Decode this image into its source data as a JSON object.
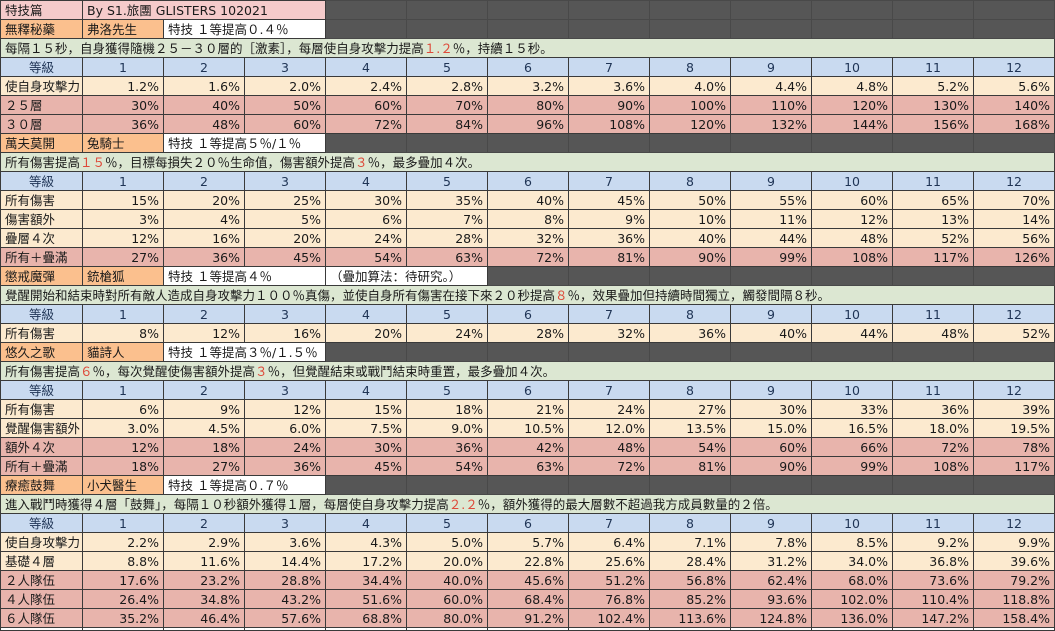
{
  "sheet": {
    "title": "特技篇",
    "byline": "By  S1.旅團 GLISTERS  102021"
  },
  "levels_header": {
    "label": "等級",
    "levels": [
      "1",
      "2",
      "3",
      "4",
      "5",
      "6",
      "7",
      "8",
      "9",
      "10",
      "11",
      "12"
    ]
  },
  "skills": [
    {
      "name": "無釋秘藥",
      "character": "弗洛先生",
      "note": "特技 １等提高０.４％",
      "note2": null,
      "description": [
        {
          "t": "每隔１５秒，自身獲得隨機２５－３０層的［激素］，每層使自身攻擊力提高"
        },
        {
          "t": "１.２",
          "red": true
        },
        {
          "t": "％，持續１５秒。"
        }
      ],
      "rows": [
        {
          "label": "使自身攻擊力",
          "tone": "cream",
          "values": [
            "1.2%",
            "1.6%",
            "2.0%",
            "2.4%",
            "2.8%",
            "3.2%",
            "3.6%",
            "4.0%",
            "4.4%",
            "4.8%",
            "5.2%",
            "5.6%"
          ]
        },
        {
          "label": "２５層",
          "tone": "pinkrow",
          "values": [
            "30%",
            "40%",
            "50%",
            "60%",
            "70%",
            "80%",
            "90%",
            "100%",
            "110%",
            "120%",
            "130%",
            "140%"
          ]
        },
        {
          "label": "３０層",
          "tone": "pinkrow",
          "values": [
            "36%",
            "48%",
            "60%",
            "72%",
            "84%",
            "96%",
            "108%",
            "120%",
            "132%",
            "144%",
            "156%",
            "168%"
          ]
        }
      ]
    },
    {
      "name": "萬夫莫開",
      "character": "兔騎士",
      "note": "特技 １等提高５％/１％",
      "note2": null,
      "description": [
        {
          "t": "所有傷害提高"
        },
        {
          "t": "１５",
          "red": true
        },
        {
          "t": "％，目標每損失２０％生命值，傷害額外提高"
        },
        {
          "t": "３",
          "red": true
        },
        {
          "t": "％，最多疊加４次。"
        }
      ],
      "rows": [
        {
          "label": "所有傷害",
          "tone": "cream",
          "values": [
            "15%",
            "20%",
            "25%",
            "30%",
            "35%",
            "40%",
            "45%",
            "50%",
            "55%",
            "60%",
            "65%",
            "70%"
          ]
        },
        {
          "label": "傷害額外",
          "tone": "cream",
          "values": [
            "3%",
            "4%",
            "5%",
            "6%",
            "7%",
            "8%",
            "9%",
            "10%",
            "11%",
            "12%",
            "13%",
            "14%"
          ]
        },
        {
          "label": "疊層４次",
          "tone": "cream",
          "values": [
            "12%",
            "16%",
            "20%",
            "24%",
            "28%",
            "32%",
            "36%",
            "40%",
            "44%",
            "48%",
            "52%",
            "56%"
          ]
        },
        {
          "label": "所有＋疊滿",
          "tone": "pinkrow",
          "values": [
            "27%",
            "36%",
            "45%",
            "54%",
            "63%",
            "72%",
            "81%",
            "90%",
            "99%",
            "108%",
            "117%",
            "126%"
          ]
        }
      ]
    },
    {
      "name": "懲戒魔彈",
      "character": "銃槍狐",
      "note": "特技 １等提高４％",
      "note2": "（疊加算法：待研究。）",
      "description": [
        {
          "t": "覺醒開始和結束時對所有敵人造成自身攻擊力１００％真傷，並使自身所有傷害在接下來２０秒提高"
        },
        {
          "t": "８",
          "red": true
        },
        {
          "t": "％，效果疊加但持續時間獨立，觸發間隔８秒。"
        }
      ],
      "rows": [
        {
          "label": "所有傷害",
          "tone": "cream",
          "values": [
            "8%",
            "12%",
            "16%",
            "20%",
            "24%",
            "28%",
            "32%",
            "36%",
            "40%",
            "44%",
            "48%",
            "52%"
          ]
        }
      ]
    },
    {
      "name": "悠久之歌",
      "character": "貓詩人",
      "note": "特技 １等提高３％/１.５％",
      "note2": null,
      "description": [
        {
          "t": "所有傷害提高"
        },
        {
          "t": "６",
          "red": true
        },
        {
          "t": "％，每次覺醒使傷害額外提高"
        },
        {
          "t": "３",
          "red": true
        },
        {
          "t": "％，但覺醒結束或戰鬥結束時重置，最多疊加４次。"
        }
      ],
      "rows": [
        {
          "label": "所有傷害",
          "tone": "cream",
          "values": [
            "6%",
            "9%",
            "12%",
            "15%",
            "18%",
            "21%",
            "24%",
            "27%",
            "30%",
            "33%",
            "36%",
            "39%"
          ]
        },
        {
          "label": "覺醒傷害額外",
          "tone": "cream",
          "values": [
            "3.0%",
            "4.5%",
            "6.0%",
            "7.5%",
            "9.0%",
            "10.5%",
            "12.0%",
            "13.5%",
            "15.0%",
            "16.5%",
            "18.0%",
            "19.5%"
          ]
        },
        {
          "label": "額外４次",
          "tone": "pinkrow",
          "values": [
            "12%",
            "18%",
            "24%",
            "30%",
            "36%",
            "42%",
            "48%",
            "54%",
            "60%",
            "66%",
            "72%",
            "78%"
          ]
        },
        {
          "label": "所有＋疊滿",
          "tone": "pinkrow",
          "values": [
            "18%",
            "27%",
            "36%",
            "45%",
            "54%",
            "63%",
            "72%",
            "81%",
            "90%",
            "99%",
            "108%",
            "117%"
          ]
        }
      ]
    },
    {
      "name": "療癒鼓舞",
      "character": "小犬醫生",
      "note": "特技 １等提高０.７％",
      "note2": null,
      "description": [
        {
          "t": "進入戰鬥時獲得４層「鼓舞」，每隔１０秒額外獲得１層，每層使自身攻擊力提高"
        },
        {
          "t": "２.２",
          "red": true
        },
        {
          "t": "％，額外獲得的最大層數不超過我方成員數量的２倍。"
        }
      ],
      "rows": [
        {
          "label": "使自身攻擊力",
          "tone": "cream",
          "values": [
            "2.2%",
            "2.9%",
            "3.6%",
            "4.3%",
            "5.0%",
            "5.7%",
            "6.4%",
            "7.1%",
            "7.8%",
            "8.5%",
            "9.2%",
            "9.9%"
          ]
        },
        {
          "label": "基礎４層",
          "tone": "cream",
          "values": [
            "8.8%",
            "11.6%",
            "14.4%",
            "17.2%",
            "20.0%",
            "22.8%",
            "25.6%",
            "28.4%",
            "31.2%",
            "34.0%",
            "36.8%",
            "39.6%"
          ]
        },
        {
          "label": "２人隊伍",
          "tone": "pinkrow",
          "values": [
            "17.6%",
            "23.2%",
            "28.8%",
            "34.4%",
            "40.0%",
            "45.6%",
            "51.2%",
            "56.8%",
            "62.4%",
            "68.0%",
            "73.6%",
            "79.2%"
          ]
        },
        {
          "label": "４人隊伍",
          "tone": "pinkrow",
          "values": [
            "26.4%",
            "34.8%",
            "43.2%",
            "51.6%",
            "60.0%",
            "68.4%",
            "76.8%",
            "85.2%",
            "93.6%",
            "102.0%",
            "110.4%",
            "118.8%"
          ]
        },
        {
          "label": "６人隊伍",
          "tone": "pinkrow",
          "values": [
            "35.2%",
            "46.4%",
            "57.6%",
            "68.8%",
            "80.0%",
            "91.2%",
            "102.4%",
            "113.6%",
            "124.8%",
            "136.0%",
            "147.2%",
            "158.4%"
          ]
        }
      ]
    }
  ],
  "colors": {
    "title_pink": "#F5CBCB",
    "skill_orange": "#FBC08E",
    "description_green": "#DCE7D2",
    "header_blue": "#C9DAF0",
    "data_cream": "#FCEACF",
    "data_pink": "#E8B4AC",
    "filler_gray": "#565656",
    "highlight_red": "#DE4A3A",
    "header_text": "#1F3455"
  }
}
